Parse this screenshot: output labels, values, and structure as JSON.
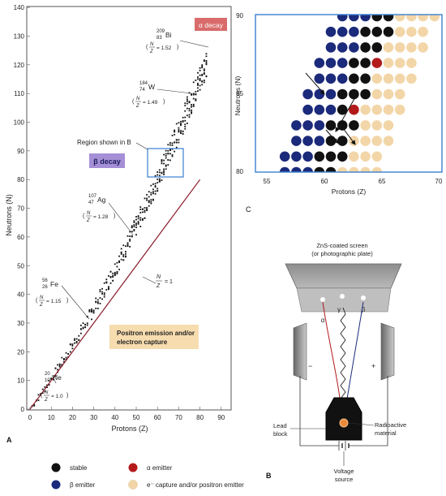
{
  "panel_a": {
    "label": "A",
    "xlabel": "Protons (Z)",
    "ylabel": "Neutrons (N)",
    "x_ticks": [
      "0",
      "10",
      "20",
      "30",
      "40",
      "50",
      "60",
      "70",
      "80",
      "90"
    ],
    "y_ticks": [
      "0",
      "10",
      "20",
      "30",
      "40",
      "50",
      "60",
      "70",
      "80",
      "90",
      "100",
      "110",
      "120",
      "130",
      "140"
    ],
    "alpha_decay": "α decay",
    "beta_decay": "β decay",
    "region_label": "Region shown in B",
    "positron_box": [
      "Positron emission and/or",
      "electron capture"
    ],
    "line_label_n": "N",
    "line_label_z": "Z",
    "line_label_eq": "= 1",
    "nuclides": [
      {
        "mass": "209",
        "atomic": "83",
        "symbol": "Bi",
        "ratio": "= 1.52"
      },
      {
        "mass": "184",
        "atomic": "74",
        "symbol": "W",
        "ratio": "= 1.49"
      },
      {
        "mass": "107",
        "atomic": "47",
        "symbol": "Ag",
        "ratio": "= 1.28"
      },
      {
        "mass": "56",
        "atomic": "26",
        "symbol": "Fe",
        "ratio": "= 1.15"
      },
      {
        "mass": "20",
        "atomic": "10",
        "symbol": "Ne",
        "ratio": "= 1.0"
      }
    ]
  },
  "panel_b": {
    "label": "C",
    "xlabel": "Protons (Z)",
    "ylabel": "Neutrons (N)",
    "x_ticks": [
      "55",
      "60",
      "65",
      "70"
    ],
    "y_ticks": [
      "80",
      "85",
      "90"
    ]
  },
  "panel_c": {
    "label": "B",
    "screen_label": [
      "ZnS-coated screen",
      "(or photographic plate)"
    ],
    "alpha": "α",
    "gamma": "γ",
    "beta": "β",
    "minus": "−",
    "plus": "+",
    "lead_block": [
      "Lead",
      "block"
    ],
    "radioactive": [
      "Radioactive",
      "material"
    ],
    "voltage": [
      "Voltage",
      "source"
    ]
  },
  "legend": {
    "stable": "stable",
    "alpha_emitter": "α emitter",
    "beta_emitter": "β emitter",
    "capture": "e⁻ capture and/or positron emitter"
  },
  "colors": {
    "stable": "#111111",
    "beta": "#1b2a7a",
    "alpha": "#b31a1a",
    "capture": "#f3d6a8",
    "alpha_box": "#d96b6b",
    "beta_box": "#a58fd6",
    "positron_box": "#f6dcae",
    "frame_blue": "#3a7fd0",
    "line": "#8a1b2a"
  }
}
